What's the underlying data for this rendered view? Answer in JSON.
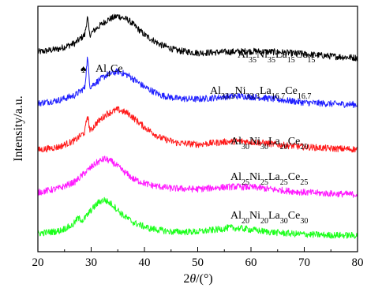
{
  "chart_data": {
    "type": "line",
    "xlabel": "2θ/(°)",
    "ylabel": "Intensity/a.u.",
    "xlim": [
      20,
      80
    ],
    "xticks": [
      20,
      30,
      40,
      50,
      60,
      70,
      80
    ],
    "yticks_visible": false,
    "grid": false,
    "legend": "labels beside each curve",
    "annotation": {
      "symbol": "♠",
      "text": "Al4Ce",
      "x": 29.3
    },
    "series": [
      {
        "name": "Al35Ni35La15Ce15",
        "color": "#000000",
        "offset": 4.3,
        "points": [
          [
            20,
            0.2
          ],
          [
            24,
            0.28
          ],
          [
            27,
            0.42
          ],
          [
            28.8,
            0.62
          ],
          [
            29.3,
            1.05
          ],
          [
            29.7,
            0.62
          ],
          [
            31,
            0.78
          ],
          [
            33,
            0.98
          ],
          [
            35,
            1.08
          ],
          [
            37,
            0.98
          ],
          [
            40,
            0.62
          ],
          [
            43,
            0.38
          ],
          [
            46,
            0.24
          ],
          [
            50,
            0.18
          ],
          [
            55,
            0.2
          ],
          [
            60,
            0.22
          ],
          [
            65,
            0.2
          ],
          [
            70,
            0.15
          ],
          [
            75,
            0.1
          ],
          [
            80,
            0.06
          ]
        ]
      },
      {
        "name": "Al33.3Ni33.3La16.7Ce16.7",
        "color": "#1f1fff",
        "offset": 3.15,
        "points": [
          [
            20,
            0.1
          ],
          [
            24,
            0.18
          ],
          [
            27,
            0.3
          ],
          [
            28.8,
            0.48
          ],
          [
            29.3,
            1.22
          ],
          [
            29.8,
            0.5
          ],
          [
            31,
            0.62
          ],
          [
            33,
            0.8
          ],
          [
            35,
            0.88
          ],
          [
            37,
            0.78
          ],
          [
            40,
            0.5
          ],
          [
            43,
            0.3
          ],
          [
            46,
            0.22
          ],
          [
            50,
            0.2
          ],
          [
            55,
            0.26
          ],
          [
            58,
            0.28
          ],
          [
            62,
            0.24
          ],
          [
            66,
            0.18
          ],
          [
            70,
            0.12
          ],
          [
            75,
            0.09
          ],
          [
            80,
            0.07
          ]
        ]
      },
      {
        "name": "Al30Ni30La20Ce20",
        "color": "#ff1a1a",
        "offset": 2.05,
        "points": [
          [
            20,
            0.06
          ],
          [
            24,
            0.14
          ],
          [
            27,
            0.3
          ],
          [
            28.8,
            0.5
          ],
          [
            29.3,
            0.92
          ],
          [
            29.8,
            0.52
          ],
          [
            31,
            0.72
          ],
          [
            33,
            0.95
          ],
          [
            35,
            1.05
          ],
          [
            37,
            0.95
          ],
          [
            40,
            0.62
          ],
          [
            43,
            0.36
          ],
          [
            46,
            0.24
          ],
          [
            50,
            0.2
          ],
          [
            55,
            0.26
          ],
          [
            58,
            0.28
          ],
          [
            62,
            0.24
          ],
          [
            66,
            0.18
          ],
          [
            70,
            0.14
          ],
          [
            75,
            0.1
          ],
          [
            80,
            0.08
          ]
        ]
      },
      {
        "name": "Al25Ni25La25Ce25",
        "color": "#ff1aff",
        "offset": 1.0,
        "points": [
          [
            20,
            0.08
          ],
          [
            24,
            0.18
          ],
          [
            27,
            0.34
          ],
          [
            29,
            0.58
          ],
          [
            31,
            0.8
          ],
          [
            32.5,
            0.9
          ],
          [
            34,
            0.82
          ],
          [
            36,
            0.6
          ],
          [
            38,
            0.4
          ],
          [
            41,
            0.26
          ],
          [
            45,
            0.18
          ],
          [
            50,
            0.16
          ],
          [
            54,
            0.2
          ],
          [
            57,
            0.22
          ],
          [
            61,
            0.2
          ],
          [
            65,
            0.14
          ],
          [
            70,
            0.08
          ],
          [
            75,
            0.05
          ],
          [
            80,
            0.03
          ]
        ]
      },
      {
        "name": "Al20Ni20La30Ce30",
        "color": "#1aff1a",
        "offset": 0.0,
        "points": [
          [
            20,
            0.08
          ],
          [
            24,
            0.14
          ],
          [
            26.5,
            0.28
          ],
          [
            27.5,
            0.45
          ],
          [
            28.5,
            0.4
          ],
          [
            30,
            0.65
          ],
          [
            31.5,
            0.85
          ],
          [
            32.5,
            0.9
          ],
          [
            34,
            0.78
          ],
          [
            36,
            0.52
          ],
          [
            38,
            0.34
          ],
          [
            41,
            0.2
          ],
          [
            45,
            0.12
          ],
          [
            50,
            0.12
          ],
          [
            54,
            0.18
          ],
          [
            56,
            0.22
          ],
          [
            59,
            0.19
          ],
          [
            63,
            0.12
          ],
          [
            68,
            0.07
          ],
          [
            74,
            0.04
          ],
          [
            80,
            0.03
          ]
        ]
      }
    ]
  },
  "labels": {
    "s1": {
      "main": "Al",
      "parts": [
        [
          "35",
          ""
        ],
        [
          "Ni",
          ""
        ],
        [
          "35",
          ""
        ],
        [
          "La",
          ""
        ],
        [
          "15",
          ""
        ],
        [
          "Ce",
          ""
        ],
        [
          "15",
          ""
        ]
      ]
    }
  }
}
